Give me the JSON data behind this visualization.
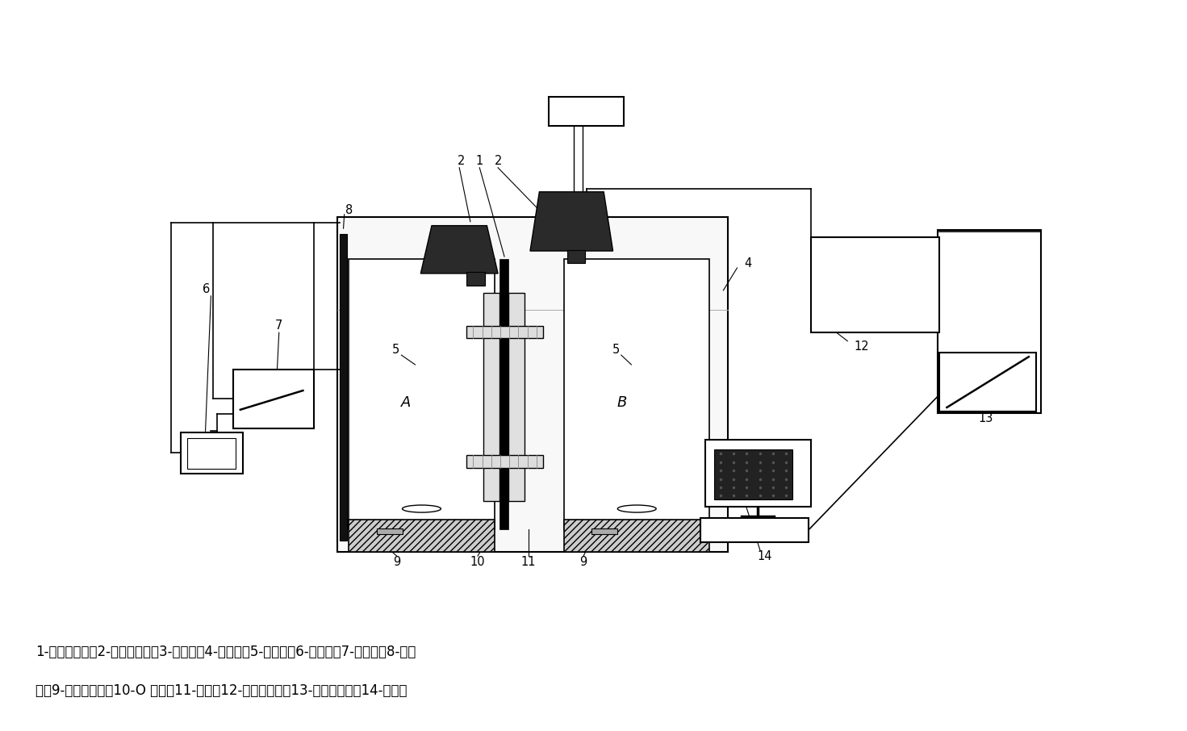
{
  "bg_color": "#ffffff",
  "caption_line1": "1-质子交换膜；2-玻璃扩散池；3-取样口；4-水浴池；5-磁转子；6-控温仪；7-加热器；8-热电",
  "caption_line2": "偶；9-磁力搅拌器；10-O 型圈；11-法兰；12-气相色谱仪；13-数据采集器；14-计算机",
  "figsize": [
    14.71,
    9.06
  ],
  "dpi": 100
}
